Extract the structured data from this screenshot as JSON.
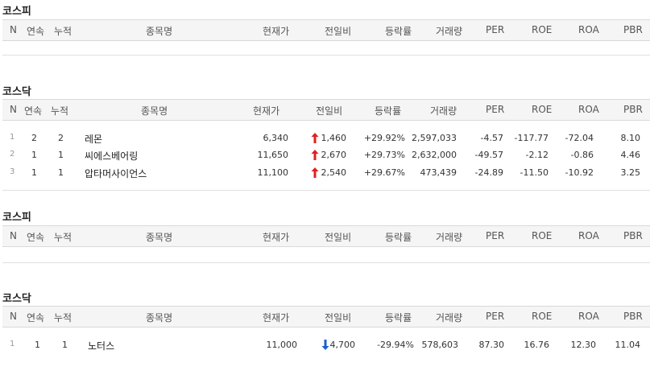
{
  "headers": [
    "N",
    "연속",
    "누적",
    "종목명",
    "현재가",
    "전일비",
    "등락률",
    "거래량",
    "PER",
    "ROE",
    "ROA",
    "PBR"
  ],
  "sections": [
    {
      "title": "코스피",
      "rows": []
    },
    {
      "title": "코스닥",
      "rows": [
        {
          "n": "1",
          "cons": "2",
          "cum": "2",
          "name": "레몬",
          "price": "6,340",
          "change": "1,460",
          "dir": "up",
          "rate": "+29.92%",
          "volume": "2,597,033",
          "per": "-4.57",
          "roe": "-117.77",
          "roa": "-72.04",
          "pbr": "8.10"
        },
        {
          "n": "2",
          "cons": "1",
          "cum": "1",
          "name": "씨에스베어링",
          "price": "11,650",
          "change": "2,670",
          "dir": "up",
          "rate": "+29.73%",
          "volume": "2,632,000",
          "per": "-49.57",
          "roe": "-2.12",
          "roa": "-0.86",
          "pbr": "4.46"
        },
        {
          "n": "3",
          "cons": "1",
          "cum": "1",
          "name": "압타머사이언스",
          "price": "11,100",
          "change": "2,540",
          "dir": "up",
          "rate": "+29.67%",
          "volume": "473,439",
          "per": "-24.89",
          "roe": "-11.50",
          "roa": "-10.92",
          "pbr": "3.25"
        }
      ]
    },
    {
      "title": "코스피",
      "rows": []
    },
    {
      "title": "코스닥",
      "rows": [
        {
          "n": "1",
          "cons": "1",
          "cum": "1",
          "name": "노터스",
          "price": "11,000",
          "change": "4,700",
          "dir": "down",
          "rate": "-29.94%",
          "volume": "578,603",
          "per": "87.30",
          "roe": "16.76",
          "roa": "12.30",
          "pbr": "11.04"
        }
      ]
    }
  ],
  "colors": {
    "up": "#e02020",
    "down": "#1a5fd0",
    "header_bg": "#f5f5f5"
  },
  "icons": {
    "up": "arrow-up-icon",
    "down": "arrow-down-icon"
  }
}
